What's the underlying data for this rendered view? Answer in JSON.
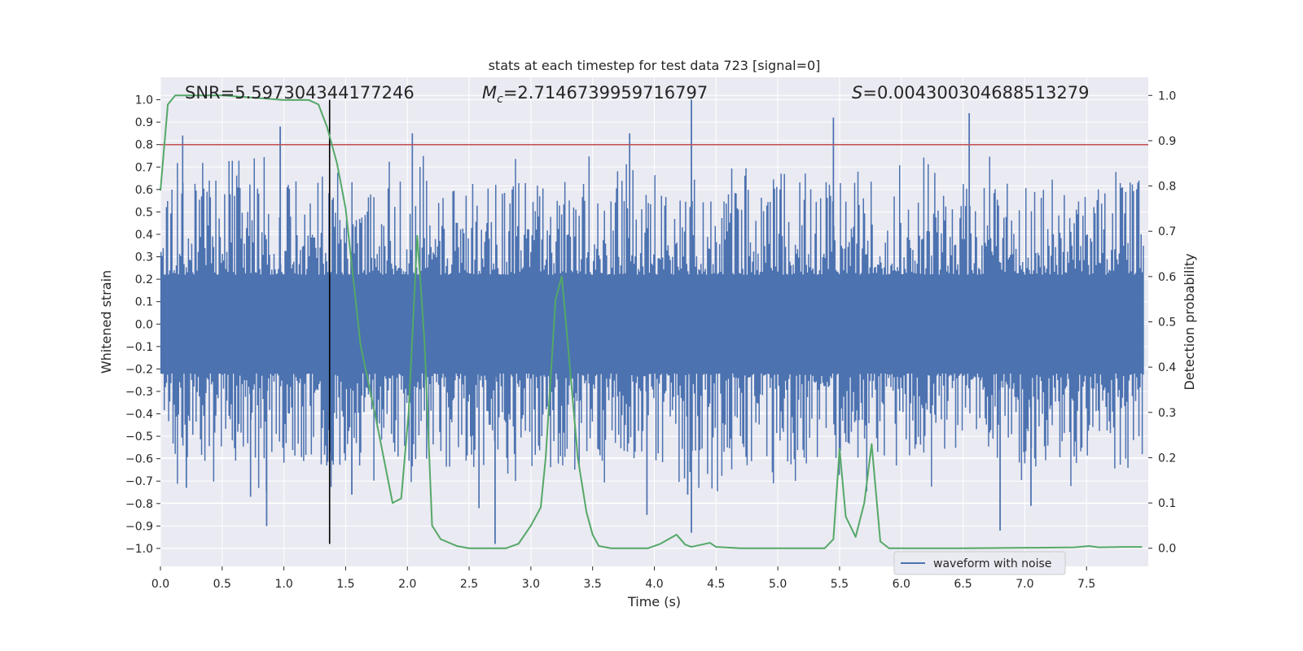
{
  "chart_data": {
    "type": "line",
    "title": "stats at each timestep for test data 723 [signal=0]",
    "xlabel": "Time (s)",
    "ylabel": "Whitened strain",
    "y2label": "Detection probability",
    "xlim": [
      0.0,
      8.0
    ],
    "ylim": [
      -1.08,
      1.1
    ],
    "y2lim": [
      -0.04,
      1.04
    ],
    "x_ticks": [
      0.0,
      0.5,
      1.0,
      1.5,
      2.0,
      2.5,
      3.0,
      3.5,
      4.0,
      4.5,
      5.0,
      5.5,
      6.0,
      6.5,
      7.0,
      7.5
    ],
    "x_tick_labels": [
      "0.0",
      "0.5",
      "1.0",
      "1.5",
      "2.0",
      "2.5",
      "3.0",
      "3.5",
      "4.0",
      "4.5",
      "5.0",
      "5.5",
      "6.0",
      "6.5",
      "7.0",
      "7.5"
    ],
    "y_ticks": [
      1.0,
      0.9,
      0.8,
      0.7,
      0.6,
      0.5,
      0.4,
      0.3,
      0.2,
      0.1,
      0.0,
      -0.1,
      -0.2,
      -0.3,
      -0.4,
      -0.5,
      -0.6,
      -0.7,
      -0.8,
      -0.9,
      -1.0
    ],
    "y_tick_labels": [
      "1.0",
      "0.9",
      "0.8",
      "0.7",
      "0.6",
      "0.5",
      "0.4",
      "0.3",
      "0.2",
      "0.1",
      "0.0",
      "−0.1",
      "−0.2",
      "−0.3",
      "−0.4",
      "−0.5",
      "−0.6",
      "−0.7",
      "−0.8",
      "−0.9",
      "−1.0"
    ],
    "y2_ticks": [
      1.0,
      0.9,
      0.8,
      0.7,
      0.6,
      0.5,
      0.4,
      0.3,
      0.2,
      0.1,
      0.0
    ],
    "y2_tick_labels": [
      "1.0",
      "0.9",
      "0.8",
      "0.7",
      "0.6",
      "0.5",
      "0.4",
      "0.3",
      "0.2",
      "0.1",
      "0.0"
    ],
    "annotations": {
      "snr": "SNR=5.597304344177246",
      "mc_symbol": "M",
      "mc_sub": "c",
      "mc_value": "=2.7146739959716797",
      "s_symbol": "S",
      "s_value": "=0.004300304688513279"
    },
    "threshold_line": {
      "y": 0.8,
      "color": "#c44e52"
    },
    "vertical_marker": {
      "x": 1.37,
      "y_range": [
        -0.98,
        1.0
      ],
      "color": "#000000"
    },
    "legend": {
      "label": "waveform with noise",
      "position": "lower-right"
    },
    "series": [
      {
        "name": "waveform with noise",
        "axis": "left",
        "color": "#4c72b0",
        "kind": "noise-envelope",
        "seed": 723,
        "n_samples": 900,
        "spikes": [
          {
            "x": 0.18,
            "y": 0.84
          },
          {
            "x": 0.21,
            "y": -0.73
          },
          {
            "x": 0.86,
            "y": -0.9
          },
          {
            "x": 0.97,
            "y": 0.88
          },
          {
            "x": 2.04,
            "y": 0.85
          },
          {
            "x": 2.71,
            "y": -0.98
          },
          {
            "x": 3.8,
            "y": 0.85
          },
          {
            "x": 3.94,
            "y": -0.85
          },
          {
            "x": 4.3,
            "y": 1.0
          },
          {
            "x": 4.3,
            "y": -0.93
          },
          {
            "x": 5.45,
            "y": 0.92
          },
          {
            "x": 6.55,
            "y": 0.94
          },
          {
            "x": 6.8,
            "y": -0.92
          },
          {
            "x": 2.58,
            "y": -0.82
          },
          {
            "x": 4.27,
            "y": -0.76
          },
          {
            "x": 1.55,
            "y": -0.76
          },
          {
            "x": 0.73,
            "y": -0.77
          },
          {
            "x": 7.05,
            "y": -0.81
          }
        ]
      },
      {
        "name": "detection probability",
        "axis": "right",
        "color": "#55a868",
        "x": [
          0.0,
          0.06,
          0.12,
          0.3,
          0.5,
          0.75,
          1.0,
          1.2,
          1.28,
          1.35,
          1.43,
          1.5,
          1.62,
          1.75,
          1.88,
          1.95,
          2.01,
          2.08,
          2.14,
          2.2,
          2.27,
          2.4,
          2.5,
          2.6,
          2.8,
          2.9,
          3.0,
          3.08,
          3.12,
          3.2,
          3.25,
          3.3,
          3.38,
          3.45,
          3.5,
          3.55,
          3.65,
          3.8,
          3.95,
          4.05,
          4.18,
          4.25,
          4.3,
          4.45,
          4.5,
          4.7,
          5.0,
          5.2,
          5.38,
          5.45,
          5.5,
          5.55,
          5.63,
          5.7,
          5.76,
          5.83,
          5.9,
          6.1,
          6.5,
          7.0,
          7.4,
          7.52,
          7.6,
          7.8,
          7.95
        ],
        "y": [
          0.79,
          0.98,
          1.0,
          1.0,
          1.0,
          0.995,
          0.99,
          0.99,
          0.98,
          0.93,
          0.85,
          0.75,
          0.45,
          0.28,
          0.1,
          0.11,
          0.3,
          0.69,
          0.45,
          0.05,
          0.02,
          0.005,
          0.0,
          0.0,
          0.0,
          0.01,
          0.05,
          0.09,
          0.2,
          0.55,
          0.6,
          0.45,
          0.2,
          0.08,
          0.03,
          0.005,
          0.0,
          0.0,
          0.0,
          0.01,
          0.03,
          0.008,
          0.003,
          0.012,
          0.003,
          0.0,
          0.0,
          0.0,
          0.0,
          0.02,
          0.22,
          0.07,
          0.025,
          0.1,
          0.23,
          0.015,
          0.0,
          0.0,
          0.0,
          0.001,
          0.002,
          0.005,
          0.002,
          0.003,
          0.003
        ]
      }
    ]
  }
}
